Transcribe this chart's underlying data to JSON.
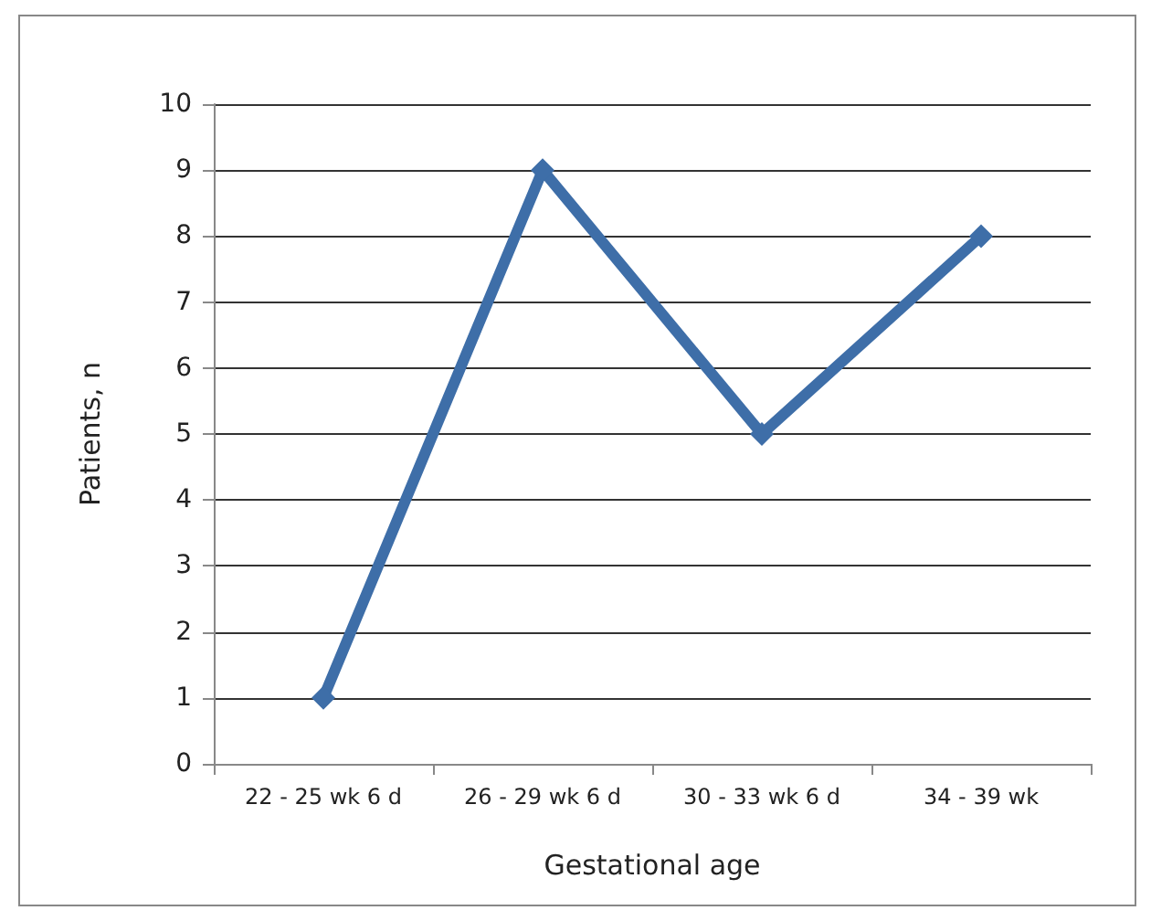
{
  "chart_data": {
    "type": "line",
    "xlabel": "Gestational age",
    "ylabel": "Patients, n",
    "categories": [
      "22 - 25 wk 6 d",
      "26 - 29 wk 6 d",
      "30 - 33 wk 6 d",
      "34 - 39 wk"
    ],
    "series": [
      {
        "color": "#3e6ea8",
        "values": [
          1,
          9,
          5,
          8
        ]
      }
    ],
    "ylim": [
      0,
      10
    ],
    "yticks": [
      0,
      1,
      2,
      3,
      4,
      5,
      6,
      7,
      8,
      9,
      10
    ],
    "grid": "y",
    "marker": "diamond",
    "line_style": "solid"
  }
}
